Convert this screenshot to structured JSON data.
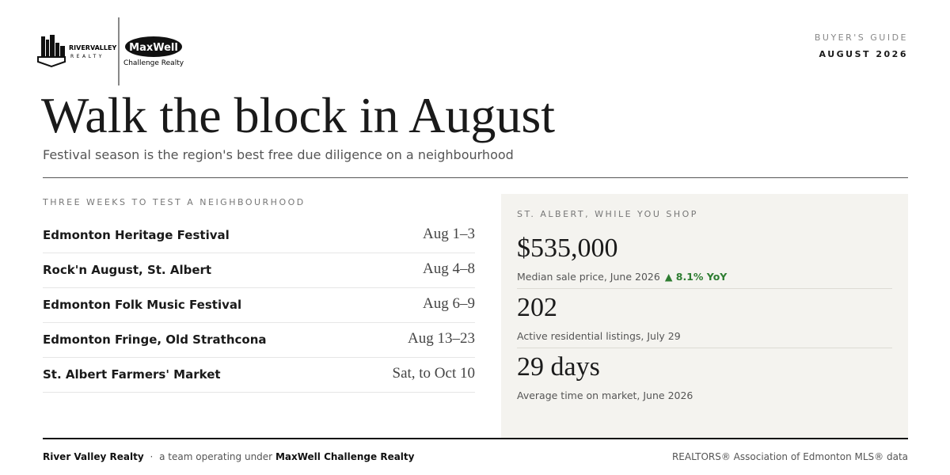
{
  "logo": {
    "brand": "RIVERVALLEY",
    "brand_sub": "REALTY",
    "partner": "MaxWell",
    "partner_sub": "Challenge Realty"
  },
  "header": {
    "kicker": "BUYER'S GUIDE",
    "edition": "AUGUST 2026",
    "title": "Walk the block in August",
    "subtitle": "Festival season is the region's best free due diligence on a neighbourhood"
  },
  "events": {
    "label": "THREE WEEKS TO TEST A NEIGHBOURHOOD",
    "rows": [
      {
        "name": "Edmonton Heritage Festival",
        "date": "Aug 1–3"
      },
      {
        "name": "Rock'n August, St. Albert",
        "date": "Aug 4–8"
      },
      {
        "name": "Edmonton Folk Music Festival",
        "date": "Aug 6–9"
      },
      {
        "name": "Edmonton Fringe, Old Strathcona",
        "date": "Aug 13–23"
      },
      {
        "name": "St. Albert Farmers' Market",
        "date": "Sat, to Oct 10"
      }
    ]
  },
  "stats": {
    "label": "ST. ALBERT, WHILE YOU SHOP",
    "items": [
      {
        "value": "$535,000",
        "caption": "Median sale price, June 2026",
        "change": "▲ 8.1% YoY"
      },
      {
        "value": "202",
        "caption": "Active residential listings, July 29"
      },
      {
        "value": "29 days",
        "caption": "Average time on market, June 2026"
      }
    ]
  },
  "footer": {
    "team": "River Valley Realty",
    "separator": "·",
    "note": "a team operating under",
    "brokerage": "MaxWell Challenge Realty",
    "source": "REALTORS® Association of Edmonton MLS® data"
  }
}
